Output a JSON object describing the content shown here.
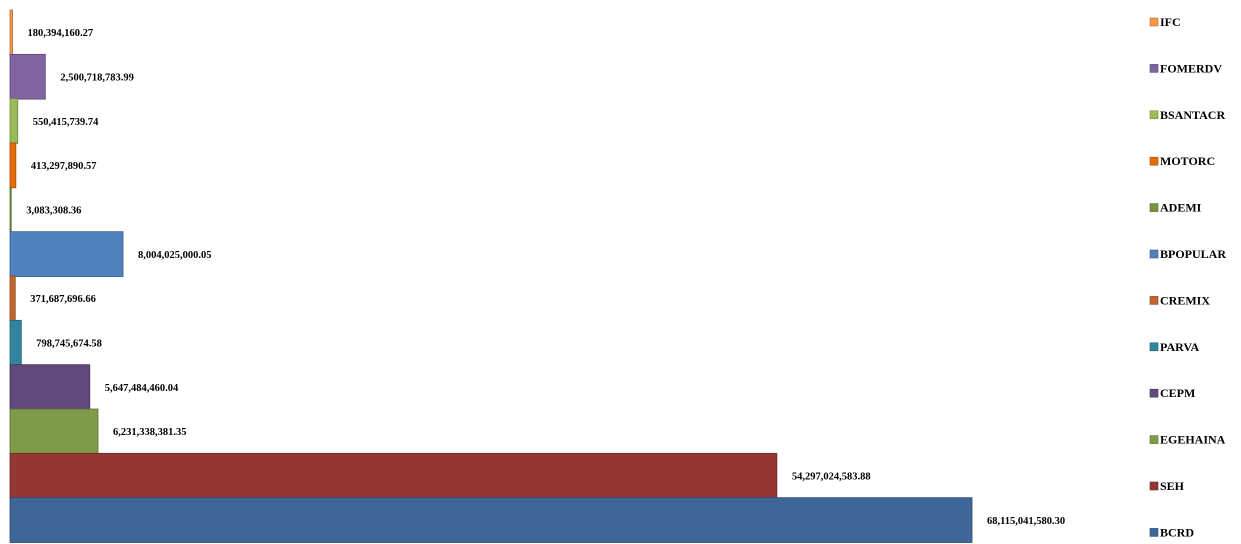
{
  "chart_data": {
    "type": "bar",
    "orientation": "horizontal",
    "title": "",
    "xlabel": "",
    "ylabel": "",
    "grid": false,
    "legend_position": "right",
    "series": [
      {
        "name": "IFC",
        "value": 180394160.27,
        "label": "180,394,160.27",
        "color": "#F79646",
        "border": "#B66D31"
      },
      {
        "name": "FOMERDV",
        "value": 2500718783.99,
        "label": "2,500,718,783.99",
        "color": "#8064A2",
        "border": "#5C4776"
      },
      {
        "name": "BSANTACR",
        "value": 550415739.74,
        "label": "550,415,739.74",
        "color": "#9BBB59",
        "border": "#71893F"
      },
      {
        "name": "MOTORC",
        "value": 413297890.57,
        "label": "413,297,890.57",
        "color": "#E46C0A",
        "border": "#A64F07"
      },
      {
        "name": "ADEMI",
        "value": 3083308.36,
        "label": "3,083,308.36",
        "color": "#77933C",
        "border": "#566B2B"
      },
      {
        "name": "BPOPULAR",
        "value": 8004025000.05,
        "label": "8,004,025,000.05",
        "color": "#4F81BD",
        "border": "#385D8A"
      },
      {
        "name": "CREMIX",
        "value": 371687696.66,
        "label": "371,687,696.66",
        "color": "#C0662D",
        "border": "#8C4A20"
      },
      {
        "name": "PARVA",
        "value": 798745674.58,
        "label": "798,745,674.58",
        "color": "#31859C",
        "border": "#215F70"
      },
      {
        "name": "CEPM",
        "value": 5647484460.04,
        "label": "5,647,484,460.04",
        "color": "#604A7B",
        "border": "#43345A"
      },
      {
        "name": "EGEHAINA",
        "value": 6231338381.35,
        "label": "6,231,338,381.35",
        "color": "#7F9A48",
        "border": "#5C7034"
      },
      {
        "name": "SEH",
        "value": 54297024583.88,
        "label": "54,297,024,583.88",
        "color": "#943634",
        "border": "#6B2725"
      },
      {
        "name": "BCRD",
        "value": 68115041580.3,
        "label": "68,115,041,580.30",
        "color": "#3E6699",
        "border": "#2C4A70"
      }
    ]
  }
}
